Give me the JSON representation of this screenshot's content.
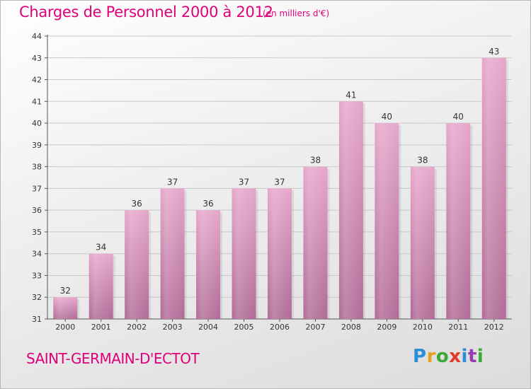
{
  "header": {
    "title": "Charges de Personnel 2000 à 2012",
    "subtitle": "(en milliers d'€)"
  },
  "footer": {
    "commune": "SAINT-GERMAIN-D'ECTOT",
    "logo_letters": [
      "P",
      "r",
      "o",
      "x",
      "i",
      "t",
      "i"
    ],
    "logo_colors": [
      "#2a8fd6",
      "#e8a020",
      "#3aa83a",
      "#e03a2a",
      "#2a8fd6",
      "#9a3ab0",
      "#3aa83a"
    ]
  },
  "chart_data": {
    "type": "bar",
    "categories": [
      "2000",
      "2001",
      "2002",
      "2003",
      "2004",
      "2005",
      "2006",
      "2007",
      "2008",
      "2009",
      "2010",
      "2011",
      "2012"
    ],
    "values": [
      32,
      34,
      36,
      37,
      36,
      37,
      37,
      38,
      41,
      40,
      38,
      40,
      43
    ],
    "data_labels": [
      "32",
      "34",
      "36",
      "37",
      "36",
      "37",
      "37",
      "38",
      "41",
      "40",
      "38",
      "40",
      "43"
    ],
    "ylim": [
      31,
      44
    ],
    "yticks": [
      "31",
      "32",
      "33",
      "34",
      "35",
      "36",
      "37",
      "38",
      "39",
      "40",
      "41",
      "42",
      "43",
      "44"
    ],
    "grid": true,
    "bar_color_top": "#e6a6cb",
    "bar_color_bottom": "#b06a96",
    "title": "Charges de Personnel 2000 à 2012",
    "xlabel": "",
    "ylabel": ""
  }
}
